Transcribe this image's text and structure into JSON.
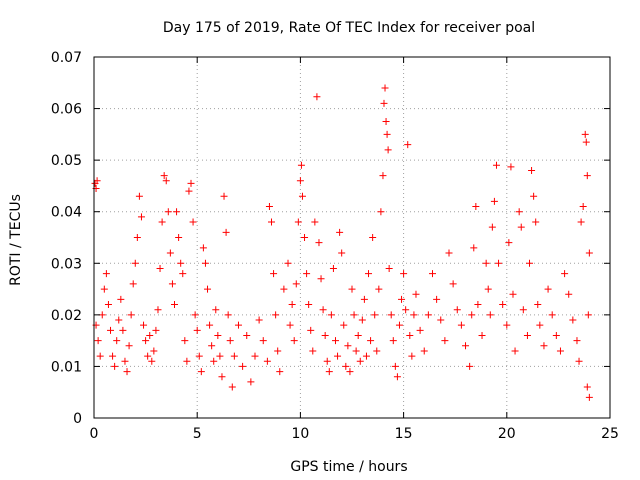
{
  "chart_data": {
    "type": "scatter",
    "title": "Day 175 of 2019, Rate Of TEC Index for receiver poal",
    "xlabel": "GPS time / hours",
    "ylabel": "ROTI / TECUs",
    "xlim": [
      0,
      25
    ],
    "ylim": [
      0,
      0.07
    ],
    "xticks": [
      0,
      5,
      10,
      15,
      20,
      25
    ],
    "xtick_labels": [
      "0",
      "5",
      "10",
      "15",
      "20",
      "25"
    ],
    "yticks": [
      0,
      0.01,
      0.02,
      0.03,
      0.04,
      0.05,
      0.06,
      0.07
    ],
    "ytick_labels": [
      "0",
      "0.01",
      "0.02",
      "0.03",
      "0.04",
      "0.05",
      "0.06",
      "0.07"
    ],
    "grid": true,
    "marker": "+",
    "color": "#ff0000",
    "series": [
      {
        "name": "ROTI",
        "points": [
          [
            0.05,
            0.0455
          ],
          [
            0.1,
            0.0445
          ],
          [
            0.15,
            0.046
          ],
          [
            0.1,
            0.018
          ],
          [
            0.2,
            0.015
          ],
          [
            0.3,
            0.012
          ],
          [
            0.4,
            0.02
          ],
          [
            0.5,
            0.025
          ],
          [
            0.6,
            0.028
          ],
          [
            0.7,
            0.022
          ],
          [
            0.8,
            0.017
          ],
          [
            0.9,
            0.012
          ],
          [
            1.0,
            0.01
          ],
          [
            1.1,
            0.015
          ],
          [
            1.2,
            0.019
          ],
          [
            1.3,
            0.023
          ],
          [
            1.4,
            0.017
          ],
          [
            1.5,
            0.011
          ],
          [
            1.6,
            0.009
          ],
          [
            1.7,
            0.014
          ],
          [
            1.8,
            0.02
          ],
          [
            1.9,
            0.026
          ],
          [
            2.0,
            0.03
          ],
          [
            2.1,
            0.035
          ],
          [
            2.2,
            0.043
          ],
          [
            2.3,
            0.039
          ],
          [
            2.4,
            0.018
          ],
          [
            2.5,
            0.015
          ],
          [
            2.6,
            0.012
          ],
          [
            2.7,
            0.016
          ],
          [
            2.8,
            0.011
          ],
          [
            2.9,
            0.013
          ],
          [
            3.0,
            0.017
          ],
          [
            3.1,
            0.021
          ],
          [
            3.2,
            0.029
          ],
          [
            3.3,
            0.038
          ],
          [
            3.4,
            0.047
          ],
          [
            3.5,
            0.046
          ],
          [
            3.6,
            0.04
          ],
          [
            3.7,
            0.032
          ],
          [
            3.8,
            0.026
          ],
          [
            3.9,
            0.022
          ],
          [
            4.0,
            0.04
          ],
          [
            4.1,
            0.035
          ],
          [
            4.2,
            0.03
          ],
          [
            4.3,
            0.028
          ],
          [
            4.4,
            0.015
          ],
          [
            4.5,
            0.011
          ],
          [
            4.6,
            0.044
          ],
          [
            4.7,
            0.0455
          ],
          [
            4.8,
            0.038
          ],
          [
            4.9,
            0.02
          ],
          [
            5.0,
            0.017
          ],
          [
            5.1,
            0.012
          ],
          [
            5.2,
            0.009
          ],
          [
            5.3,
            0.033
          ],
          [
            5.4,
            0.03
          ],
          [
            5.5,
            0.025
          ],
          [
            5.6,
            0.018
          ],
          [
            5.7,
            0.014
          ],
          [
            5.8,
            0.011
          ],
          [
            5.9,
            0.021
          ],
          [
            6.0,
            0.016
          ],
          [
            6.1,
            0.012
          ],
          [
            6.2,
            0.008
          ],
          [
            6.3,
            0.043
          ],
          [
            6.4,
            0.036
          ],
          [
            6.5,
            0.02
          ],
          [
            6.6,
            0.015
          ],
          [
            6.7,
            0.006
          ],
          [
            6.8,
            0.012
          ],
          [
            7.0,
            0.018
          ],
          [
            7.2,
            0.01
          ],
          [
            7.4,
            0.016
          ],
          [
            7.6,
            0.007
          ],
          [
            7.8,
            0.012
          ],
          [
            8.0,
            0.019
          ],
          [
            8.2,
            0.015
          ],
          [
            8.4,
            0.011
          ],
          [
            8.5,
            0.041
          ],
          [
            8.6,
            0.038
          ],
          [
            8.7,
            0.028
          ],
          [
            8.8,
            0.02
          ],
          [
            8.9,
            0.013
          ],
          [
            9.0,
            0.009
          ],
          [
            9.2,
            0.025
          ],
          [
            9.4,
            0.03
          ],
          [
            9.5,
            0.018
          ],
          [
            9.6,
            0.022
          ],
          [
            9.7,
            0.015
          ],
          [
            9.8,
            0.026
          ],
          [
            9.9,
            0.038
          ],
          [
            10.0,
            0.046
          ],
          [
            10.05,
            0.049
          ],
          [
            10.1,
            0.043
          ],
          [
            10.2,
            0.035
          ],
          [
            10.3,
            0.028
          ],
          [
            10.4,
            0.022
          ],
          [
            10.5,
            0.017
          ],
          [
            10.6,
            0.013
          ],
          [
            10.7,
            0.038
          ],
          [
            10.8,
            0.0623
          ],
          [
            10.9,
            0.034
          ],
          [
            11.0,
            0.027
          ],
          [
            11.1,
            0.021
          ],
          [
            11.2,
            0.016
          ],
          [
            11.3,
            0.011
          ],
          [
            11.4,
            0.009
          ],
          [
            11.5,
            0.02
          ],
          [
            11.6,
            0.029
          ],
          [
            11.7,
            0.015
          ],
          [
            11.8,
            0.012
          ],
          [
            11.9,
            0.036
          ],
          [
            12.0,
            0.032
          ],
          [
            12.1,
            0.018
          ],
          [
            12.2,
            0.01
          ],
          [
            12.3,
            0.014
          ],
          [
            12.4,
            0.009
          ],
          [
            12.5,
            0.025
          ],
          [
            12.6,
            0.02
          ],
          [
            12.7,
            0.013
          ],
          [
            12.8,
            0.016
          ],
          [
            12.9,
            0.011
          ],
          [
            13.0,
            0.019
          ],
          [
            13.1,
            0.023
          ],
          [
            13.2,
            0.012
          ],
          [
            13.3,
            0.028
          ],
          [
            13.4,
            0.015
          ],
          [
            13.5,
            0.035
          ],
          [
            13.6,
            0.02
          ],
          [
            13.7,
            0.013
          ],
          [
            13.8,
            0.025
          ],
          [
            13.9,
            0.04
          ],
          [
            14.0,
            0.047
          ],
          [
            14.05,
            0.061
          ],
          [
            14.1,
            0.064
          ],
          [
            14.15,
            0.0575
          ],
          [
            14.2,
            0.055
          ],
          [
            14.25,
            0.052
          ],
          [
            14.3,
            0.029
          ],
          [
            14.4,
            0.02
          ],
          [
            14.5,
            0.015
          ],
          [
            14.6,
            0.01
          ],
          [
            14.7,
            0.008
          ],
          [
            14.8,
            0.018
          ],
          [
            14.9,
            0.023
          ],
          [
            15.0,
            0.028
          ],
          [
            15.1,
            0.021
          ],
          [
            15.2,
            0.053
          ],
          [
            15.3,
            0.016
          ],
          [
            15.4,
            0.012
          ],
          [
            15.5,
            0.02
          ],
          [
            15.6,
            0.024
          ],
          [
            15.8,
            0.017
          ],
          [
            16.0,
            0.013
          ],
          [
            16.2,
            0.02
          ],
          [
            16.4,
            0.028
          ],
          [
            16.6,
            0.023
          ],
          [
            16.8,
            0.019
          ],
          [
            17.0,
            0.015
          ],
          [
            17.2,
            0.032
          ],
          [
            17.4,
            0.026
          ],
          [
            17.6,
            0.021
          ],
          [
            17.8,
            0.018
          ],
          [
            18.0,
            0.014
          ],
          [
            18.2,
            0.01
          ],
          [
            18.3,
            0.02
          ],
          [
            18.4,
            0.033
          ],
          [
            18.5,
            0.041
          ],
          [
            18.6,
            0.022
          ],
          [
            18.8,
            0.016
          ],
          [
            19.0,
            0.03
          ],
          [
            19.1,
            0.025
          ],
          [
            19.2,
            0.02
          ],
          [
            19.3,
            0.037
          ],
          [
            19.4,
            0.042
          ],
          [
            19.5,
            0.049
          ],
          [
            19.6,
            0.03
          ],
          [
            19.8,
            0.022
          ],
          [
            20.0,
            0.018
          ],
          [
            20.1,
            0.034
          ],
          [
            20.2,
            0.0487
          ],
          [
            20.3,
            0.024
          ],
          [
            20.4,
            0.013
          ],
          [
            20.6,
            0.04
          ],
          [
            20.7,
            0.037
          ],
          [
            20.8,
            0.021
          ],
          [
            21.0,
            0.016
          ],
          [
            21.1,
            0.03
          ],
          [
            21.2,
            0.048
          ],
          [
            21.3,
            0.043
          ],
          [
            21.4,
            0.038
          ],
          [
            21.5,
            0.022
          ],
          [
            21.6,
            0.018
          ],
          [
            21.8,
            0.014
          ],
          [
            22.0,
            0.025
          ],
          [
            22.2,
            0.02
          ],
          [
            22.4,
            0.016
          ],
          [
            22.6,
            0.013
          ],
          [
            22.8,
            0.028
          ],
          [
            23.0,
            0.024
          ],
          [
            23.2,
            0.019
          ],
          [
            23.4,
            0.015
          ],
          [
            23.5,
            0.011
          ],
          [
            23.6,
            0.038
          ],
          [
            23.7,
            0.041
          ],
          [
            23.8,
            0.055
          ],
          [
            23.85,
            0.0535
          ],
          [
            23.9,
            0.047
          ],
          [
            24.0,
            0.032
          ],
          [
            23.9,
            0.006
          ],
          [
            24.0,
            0.004
          ],
          [
            23.95,
            0.02
          ]
        ]
      }
    ]
  }
}
